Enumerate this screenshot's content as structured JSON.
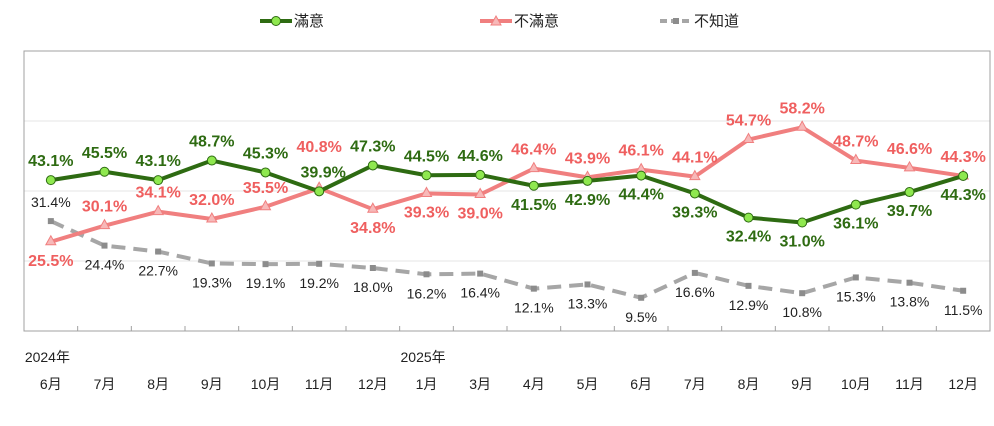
{
  "chart_data": {
    "type": "line",
    "title": "",
    "xlabel": "",
    "ylabel": "",
    "ylim": [
      0,
      80
    ],
    "grid": true,
    "legend_placement": "top",
    "year_labels": [
      {
        "index": 0,
        "label": "2024年"
      },
      {
        "index": 7,
        "label": "2025年"
      }
    ],
    "categories": [
      "6月",
      "7月",
      "8月",
      "9月",
      "10月",
      "11月",
      "12月",
      "1月",
      "3月",
      "4月",
      "5月",
      "6月",
      "7月",
      "8月",
      "9月",
      "10月",
      "11月",
      "12月"
    ],
    "series": [
      {
        "name": "滿意",
        "color": "#2e6b12",
        "marker_color": "#8fe84f",
        "style": "solid",
        "values": [
          43.1,
          45.5,
          43.1,
          48.7,
          45.3,
          39.9,
          47.3,
          44.5,
          44.6,
          41.5,
          42.9,
          44.4,
          39.3,
          32.4,
          31.0,
          36.1,
          39.7,
          44.3
        ],
        "labels": [
          "43.1%",
          "45.5%",
          "43.1%",
          "48.7%",
          "45.3%",
          "39.9%",
          "47.3%",
          "44.5%",
          "44.6%",
          "41.5%",
          "42.9%",
          "44.4%",
          "39.3%",
          "32.4%",
          "31.0%",
          "36.1%",
          "39.7%",
          "44.3%"
        ]
      },
      {
        "name": "不滿意",
        "color": "#f07f7f",
        "marker_color": "#f7b8b8",
        "style": "solid",
        "values": [
          25.5,
          30.1,
          34.1,
          32.0,
          35.5,
          40.8,
          34.8,
          39.3,
          39.0,
          46.4,
          43.9,
          46.1,
          44.1,
          54.7,
          58.2,
          48.7,
          46.6,
          44.3
        ],
        "labels": [
          "25.5%",
          "30.1%",
          "34.1%",
          "32.0%",
          "35.5%",
          "40.8%",
          "34.8%",
          "39.3%",
          "39.0%",
          "46.4%",
          "43.9%",
          "46.1%",
          "44.1%",
          "54.7%",
          "58.2%",
          "48.7%",
          "46.6%",
          "44.3%"
        ]
      },
      {
        "name": "不知道",
        "color": "#a6a6a6",
        "marker_color": "#8c8c8c",
        "style": "dashed",
        "values": [
          31.4,
          24.4,
          22.7,
          19.3,
          19.1,
          19.2,
          18.0,
          16.2,
          16.4,
          12.1,
          13.3,
          9.5,
          16.6,
          12.9,
          10.8,
          15.3,
          13.8,
          11.5
        ],
        "labels": [
          "31.4%",
          "24.4%",
          "22.7%",
          "19.3%",
          "19.1%",
          "19.2%",
          "18.0%",
          "16.2%",
          "16.4%",
          "12.1%",
          "13.3%",
          "9.5%",
          "16.6%",
          "12.9%",
          "10.8%",
          "15.3%",
          "13.8%",
          "11.5%"
        ]
      }
    ]
  }
}
